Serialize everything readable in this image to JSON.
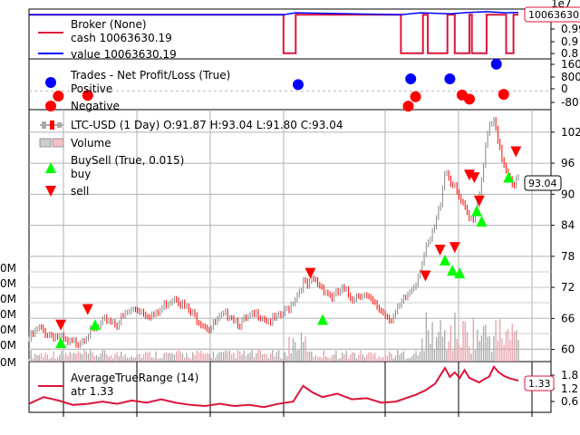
{
  "chart_data": [
    {
      "type": "line",
      "panel": "broker",
      "legend": {
        "title": "Broker (None)",
        "entries": [
          {
            "label": "cash 10063630.19",
            "color": "#dc143c"
          },
          {
            "label": "value 10063630.19",
            "color": "#0000ff"
          }
        ],
        "placement": "top-left"
      },
      "offset_label": "1e7",
      "yticks": [
        "0.99",
        "0.9",
        "0.8"
      ],
      "last_value_tag": "10063630",
      "ylim": [
        0.78,
        1.02
      ],
      "cash_profile": [
        [
          0,
          1.0
        ],
        [
          0.52,
          1.0
        ],
        [
          0.52,
          0.8
        ],
        [
          0.545,
          0.8
        ],
        [
          0.545,
          1.0
        ],
        [
          0.76,
          1.0
        ],
        [
          0.76,
          0.8
        ],
        [
          0.805,
          0.8
        ],
        [
          0.805,
          1.0
        ],
        [
          0.815,
          1.0
        ],
        [
          0.815,
          0.8
        ],
        [
          0.855,
          0.8
        ],
        [
          0.855,
          1.0
        ],
        [
          0.87,
          1.0
        ],
        [
          0.87,
          0.8
        ],
        [
          0.9,
          0.8
        ],
        [
          0.9,
          1.0
        ],
        [
          0.905,
          1.0
        ],
        [
          0.905,
          0.8
        ],
        [
          0.935,
          0.8
        ],
        [
          0.935,
          1.0
        ],
        [
          0.975,
          1.0
        ],
        [
          0.975,
          0.8
        ],
        [
          0.99,
          0.8
        ],
        [
          0.99,
          1.0
        ],
        [
          1,
          1.0
        ]
      ],
      "value_profile": [
        [
          0,
          1.0
        ],
        [
          0.52,
          1.0
        ],
        [
          0.545,
          1.01
        ],
        [
          0.76,
          1.0
        ],
        [
          0.8,
          1.01
        ],
        [
          0.86,
          1.005
        ],
        [
          0.9,
          1.012
        ],
        [
          0.935,
          1.016
        ],
        [
          0.975,
          1.01
        ],
        [
          1,
          1.012
        ]
      ]
    },
    {
      "type": "scatter",
      "panel": "trades",
      "legend": {
        "title": "Trades - Net Profit/Loss (True)",
        "entries": [
          {
            "label": "Positive",
            "color": "#0000ff"
          },
          {
            "label": "Negative",
            "color": "#ff0000"
          }
        ],
        "placement": "top-left"
      },
      "yticks": [
        "1600",
        "800",
        "0",
        "-80"
      ],
      "ylim": [
        -1000,
        1800
      ],
      "positive": [
        [
          0.55,
          380
        ],
        [
          0.78,
          720
        ],
        [
          0.86,
          720
        ],
        [
          0.955,
          1600
        ]
      ],
      "negative": [
        [
          0.06,
          -300
        ],
        [
          0.12,
          -260
        ],
        [
          0.775,
          -900
        ],
        [
          0.79,
          -340
        ],
        [
          0.885,
          -240
        ],
        [
          0.9,
          -480
        ],
        [
          0.97,
          -200
        ]
      ]
    },
    {
      "type": "candlestick",
      "panel": "price",
      "legend": {
        "title": "LTC-USD (1 Day) O:91.87 H:93.04 L:91.80 C:93.04",
        "entries": [
          {
            "label": "Volume"
          },
          {
            "label": "BuySell (True, 0.015)"
          },
          {
            "label": "buy",
            "color": "#00ff00"
          },
          {
            "label": "sell",
            "color": "#ff0000"
          }
        ],
        "placement": "top-left"
      },
      "yticks": [
        60,
        66,
        72,
        78,
        84,
        90,
        96,
        102
      ],
      "ylim": [
        58,
        106
      ],
      "last_value_tag": "93.04",
      "volume_ticks": [
        "0M",
        "0M",
        "0M",
        "0M",
        "0M",
        "0M",
        "0M"
      ],
      "price_path": [
        [
          0.0,
          62
        ],
        [
          0.02,
          64
        ],
        [
          0.04,
          63
        ],
        [
          0.06,
          62.5
        ],
        [
          0.08,
          61
        ],
        [
          0.1,
          61.5
        ],
        [
          0.12,
          63
        ],
        [
          0.14,
          64
        ],
        [
          0.16,
          66
        ],
        [
          0.18,
          65
        ],
        [
          0.2,
          67
        ],
        [
          0.22,
          68
        ],
        [
          0.24,
          67
        ],
        [
          0.26,
          66.5
        ],
        [
          0.28,
          69
        ],
        [
          0.3,
          70.5
        ],
        [
          0.31,
          69
        ],
        [
          0.33,
          67
        ],
        [
          0.35,
          65.5
        ],
        [
          0.37,
          64
        ],
        [
          0.39,
          66
        ],
        [
          0.41,
          67
        ],
        [
          0.43,
          65
        ],
        [
          0.45,
          66
        ],
        [
          0.47,
          67
        ],
        [
          0.49,
          65.5
        ],
        [
          0.51,
          66
        ],
        [
          0.53,
          68
        ],
        [
          0.55,
          71
        ],
        [
          0.56,
          73
        ],
        [
          0.57,
          72
        ],
        [
          0.58,
          73.5
        ],
        [
          0.6,
          72
        ],
        [
          0.62,
          70
        ],
        [
          0.64,
          71.5
        ],
        [
          0.66,
          70
        ],
        [
          0.68,
          71
        ],
        [
          0.7,
          69
        ],
        [
          0.72,
          67.5
        ],
        [
          0.74,
          66
        ],
        [
          0.75,
          67
        ],
        [
          0.77,
          70
        ],
        [
          0.79,
          73
        ],
        [
          0.8,
          76
        ],
        [
          0.81,
          79
        ],
        [
          0.82,
          81
        ],
        [
          0.83,
          84
        ],
        [
          0.84,
          88
        ],
        [
          0.85,
          95
        ],
        [
          0.86,
          93
        ],
        [
          0.87,
          91
        ],
        [
          0.88,
          89
        ],
        [
          0.89,
          87
        ],
        [
          0.9,
          85
        ],
        [
          0.91,
          86
        ],
        [
          0.92,
          90
        ],
        [
          0.93,
          97
        ],
        [
          0.94,
          103
        ],
        [
          0.95,
          104
        ],
        [
          0.96,
          99
        ],
        [
          0.97,
          96
        ],
        [
          0.98,
          94
        ],
        [
          0.99,
          92
        ],
        [
          1.0,
          93.04
        ]
      ],
      "buys": [
        [
          0.065,
          62
        ],
        [
          0.135,
          65.5
        ],
        [
          0.6,
          66.5
        ],
        [
          0.85,
          78
        ],
        [
          0.865,
          76
        ],
        [
          0.88,
          75.5
        ],
        [
          0.915,
          87.5
        ],
        [
          0.925,
          85.5
        ],
        [
          0.98,
          94
        ]
      ],
      "sells": [
        [
          0.065,
          64
        ],
        [
          0.12,
          67
        ],
        [
          0.575,
          74
        ],
        [
          0.81,
          73.5
        ],
        [
          0.84,
          78.5
        ],
        [
          0.87,
          79
        ],
        [
          0.9,
          93
        ],
        [
          0.91,
          92.5
        ],
        [
          0.92,
          88
        ],
        [
          0.995,
          97.5
        ]
      ]
    },
    {
      "type": "line",
      "panel": "atr",
      "legend": {
        "title": "AverageTrueRange (14)",
        "entries": [
          {
            "label": "atr 1.33",
            "color": "#dc143c"
          }
        ],
        "placement": "top-left"
      },
      "yticks": [
        "1.8",
        "1.2",
        "0.6"
      ],
      "ylim": [
        0.0,
        2.1
      ],
      "last_value_tag": "1.33",
      "atr_path": [
        [
          0.0,
          0.3
        ],
        [
          0.03,
          0.6
        ],
        [
          0.06,
          0.45
        ],
        [
          0.09,
          0.25
        ],
        [
          0.12,
          0.3
        ],
        [
          0.15,
          0.4
        ],
        [
          0.18,
          0.3
        ],
        [
          0.21,
          0.45
        ],
        [
          0.24,
          0.35
        ],
        [
          0.27,
          0.5
        ],
        [
          0.3,
          0.35
        ],
        [
          0.33,
          0.25
        ],
        [
          0.36,
          0.2
        ],
        [
          0.39,
          0.3
        ],
        [
          0.42,
          0.2
        ],
        [
          0.45,
          0.25
        ],
        [
          0.48,
          0.15
        ],
        [
          0.51,
          0.3
        ],
        [
          0.54,
          0.4
        ],
        [
          0.56,
          1.1
        ],
        [
          0.58,
          0.8
        ],
        [
          0.6,
          0.6
        ],
        [
          0.63,
          0.75
        ],
        [
          0.66,
          0.5
        ],
        [
          0.69,
          0.55
        ],
        [
          0.72,
          0.35
        ],
        [
          0.75,
          0.4
        ],
        [
          0.77,
          0.55
        ],
        [
          0.79,
          0.7
        ],
        [
          0.81,
          0.9
        ],
        [
          0.83,
          1.2
        ],
        [
          0.85,
          1.9
        ],
        [
          0.86,
          1.5
        ],
        [
          0.87,
          1.7
        ],
        [
          0.88,
          1.45
        ],
        [
          0.89,
          1.8
        ],
        [
          0.9,
          1.45
        ],
        [
          0.91,
          1.35
        ],
        [
          0.92,
          1.25
        ],
        [
          0.93,
          1.4
        ],
        [
          0.94,
          1.5
        ],
        [
          0.95,
          1.95
        ],
        [
          0.96,
          1.7
        ],
        [
          0.97,
          1.55
        ],
        [
          0.98,
          1.45
        ],
        [
          1.0,
          1.33
        ]
      ]
    }
  ]
}
